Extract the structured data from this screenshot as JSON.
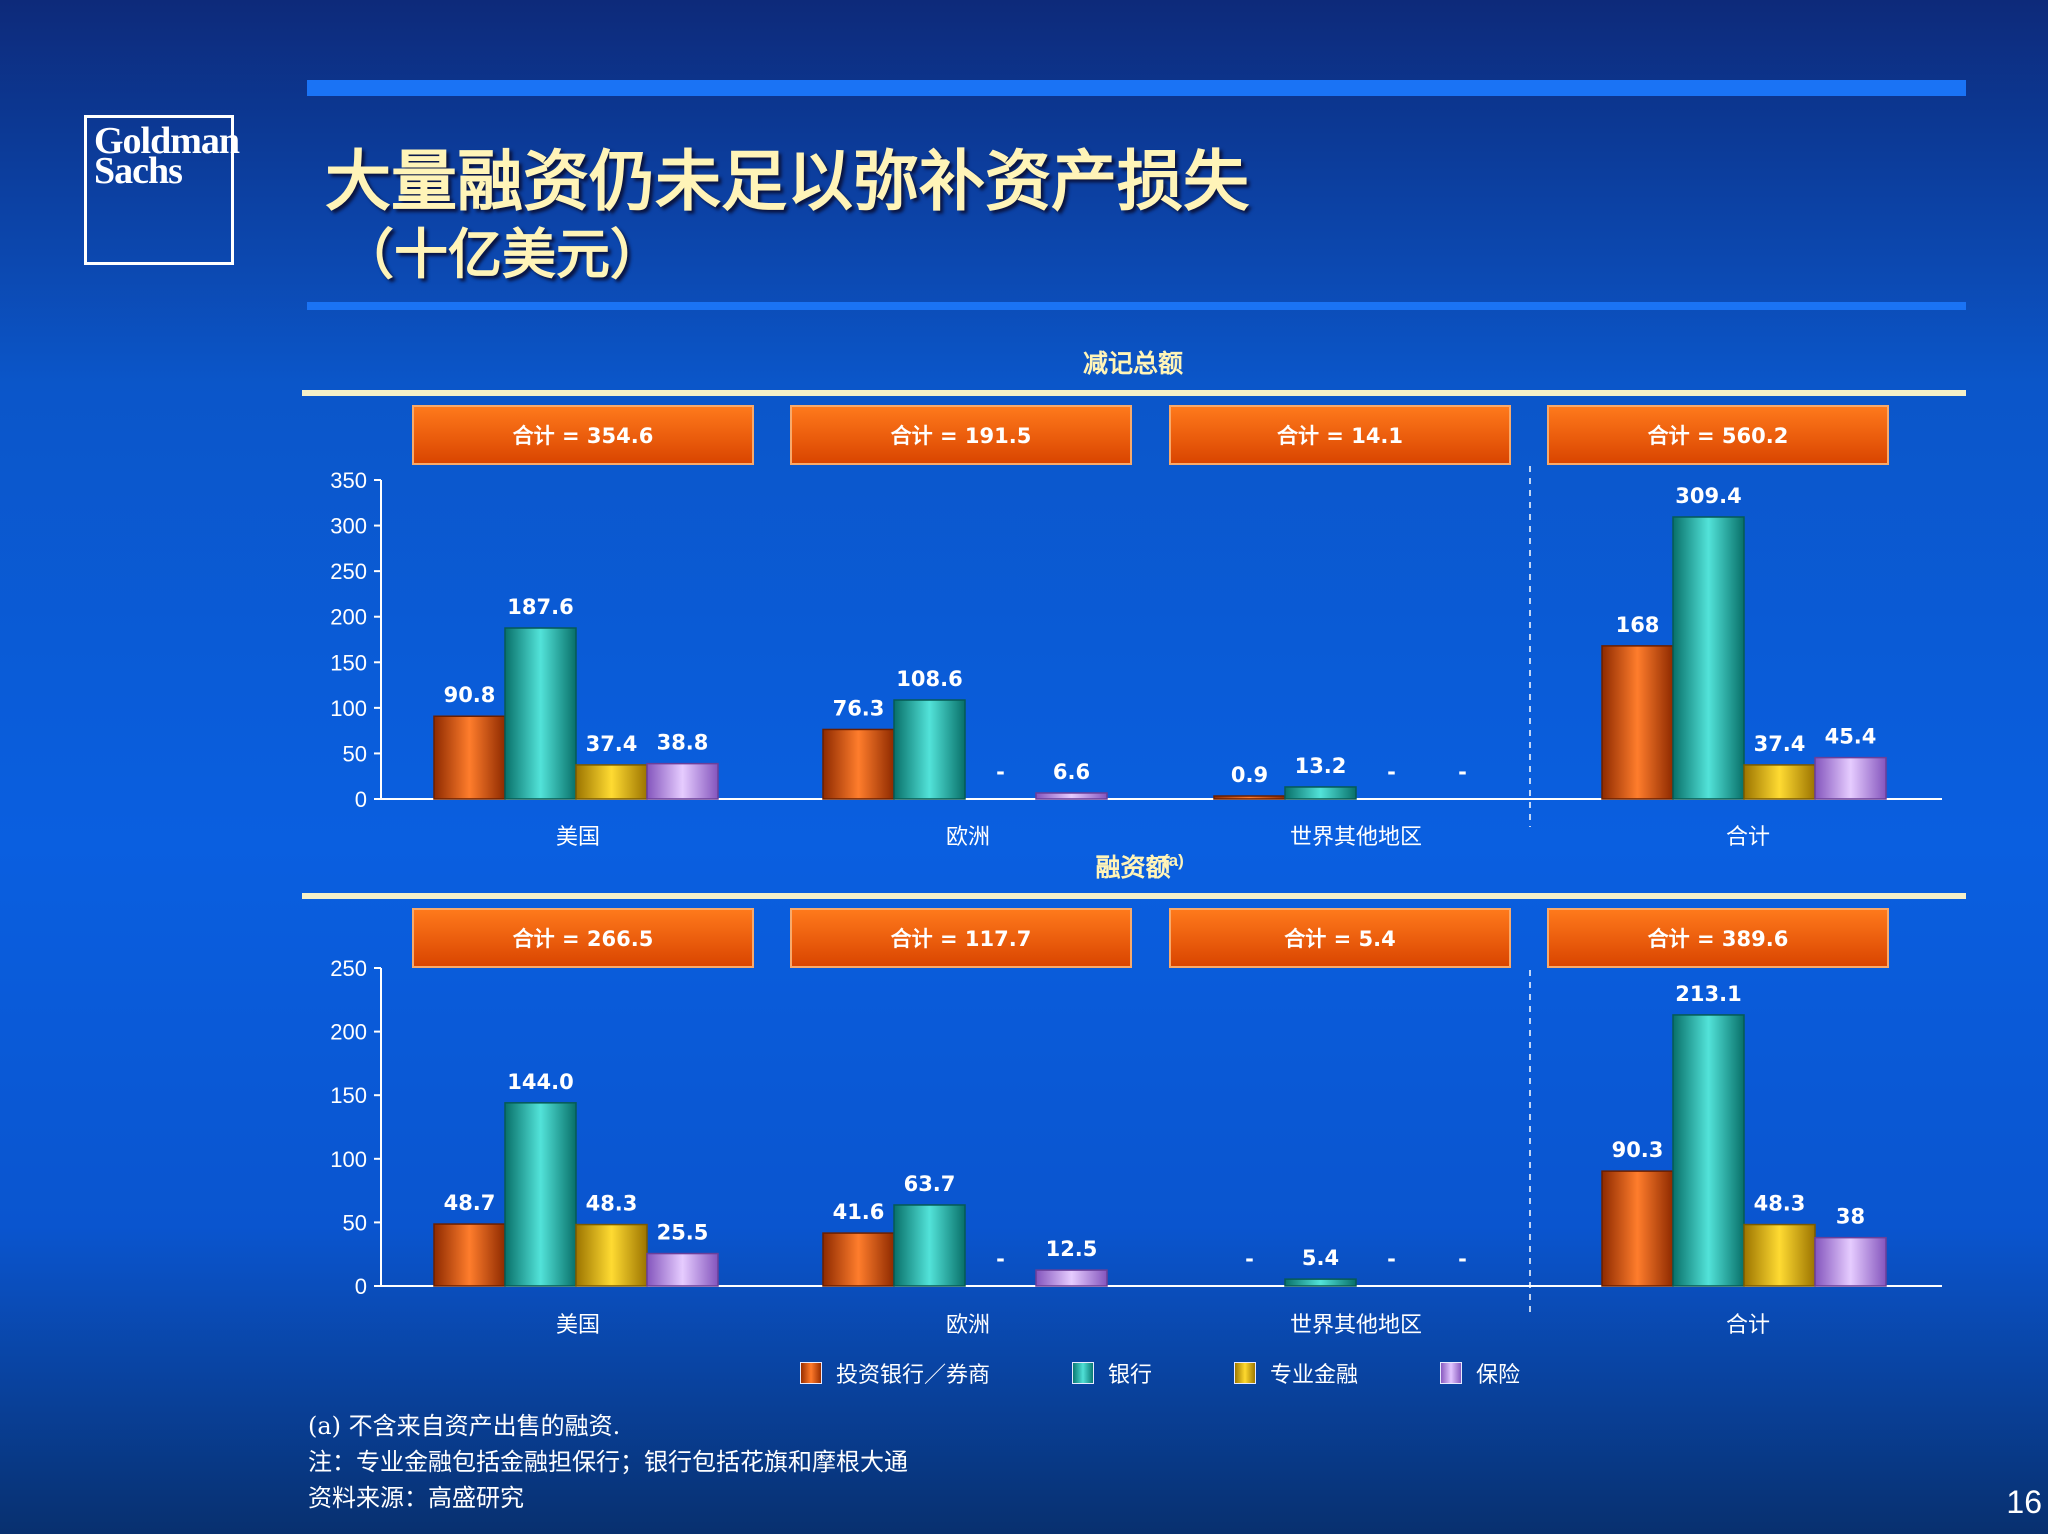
{
  "logo": {
    "line1": "Goldman",
    "line2": "Sachs"
  },
  "title": "大量融资仍未足以弥补资产损失",
  "subtitle": "（十亿美元）",
  "chart_data": [
    {
      "type": "bar",
      "title": "减记总额",
      "categories": [
        "美国",
        "欧洲",
        "世界其他地区",
        "合计"
      ],
      "series": [
        {
          "name": "投资银行／券商",
          "color": "#ef5a0c",
          "values": [
            90.8,
            76.3,
            0.9,
            168
          ],
          "labels": [
            "90.8",
            "76.3",
            "0.9",
            "168"
          ]
        },
        {
          "name": "银行",
          "color": "#1ec0b8",
          "values": [
            187.6,
            108.6,
            13.2,
            309.4
          ],
          "labels": [
            "187.6",
            "108.6",
            "13.2",
            "309.4"
          ]
        },
        {
          "name": "专业金融",
          "color": "#f2c200",
          "values": [
            37.4,
            0,
            0,
            37.4
          ],
          "labels": [
            "37.4",
            "-",
            "-",
            "37.4"
          ]
        },
        {
          "name": "保险",
          "color": "#c9a0f5",
          "values": [
            38.8,
            6.6,
            0,
            45.4
          ],
          "labels": [
            "38.8",
            "6.6",
            "-",
            "45.4"
          ]
        }
      ],
      "totals": [
        "合计 = 354.6",
        "合计 = 191.5",
        "合计 = 14.1",
        "合计 = 560.2"
      ],
      "ylim": [
        0,
        350
      ],
      "yticks": [
        0,
        50,
        100,
        150,
        200,
        250,
        300,
        350
      ]
    },
    {
      "type": "bar",
      "title": "融资额",
      "title_superscript": "(a)",
      "categories": [
        "美国",
        "欧洲",
        "世界其他地区",
        "合计"
      ],
      "series": [
        {
          "name": "投资银行／券商",
          "color": "#ef5a0c",
          "values": [
            48.7,
            41.6,
            0,
            90.3
          ],
          "labels": [
            "48.7",
            "41.6",
            "-",
            "90.3"
          ]
        },
        {
          "name": "银行",
          "color": "#1ec0b8",
          "values": [
            144.0,
            63.7,
            5.4,
            213.1
          ],
          "labels": [
            "144.0",
            "63.7",
            "5.4",
            "213.1"
          ]
        },
        {
          "name": "专业金融",
          "color": "#f2c200",
          "values": [
            48.3,
            0,
            0,
            48.3
          ],
          "labels": [
            "48.3",
            "-",
            "-",
            "48.3"
          ]
        },
        {
          "name": "保险",
          "color": "#c9a0f5",
          "values": [
            25.5,
            12.5,
            0,
            38
          ],
          "labels": [
            "25.5",
            "12.5",
            "-",
            "38"
          ]
        }
      ],
      "totals": [
        "合计 = 266.5",
        "合计 = 117.7",
        "合计 = 5.4",
        "合计 = 389.6"
      ],
      "ylim": [
        0,
        250
      ],
      "yticks": [
        0,
        50,
        100,
        150,
        200,
        250
      ]
    }
  ],
  "legend": [
    "投资银行／券商",
    "银行",
    "专业金融",
    "保险"
  ],
  "colors": {
    "inv_bank": "#ef5a0c",
    "bank": "#1ec0b8",
    "specialty": "#f2c200",
    "insurance": "#c9a0f5"
  },
  "footnotes": [
    "(a)  不含来自资产出售的融资.",
    "注：专业金融包括金融担保行；银行包括花旗和摩根大通",
    "资料来源：高盛研究"
  ],
  "page_number": "16"
}
